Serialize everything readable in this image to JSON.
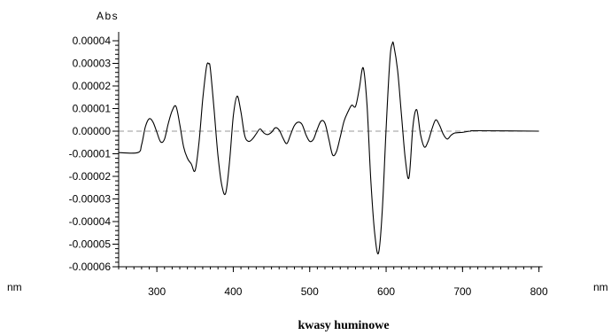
{
  "chart_data": {
    "type": "line",
    "title": "kwasy huminowe",
    "ylabel": "Abs",
    "xlabel_left": "nm",
    "xlabel_right": "nm",
    "xlim": [
      250,
      800
    ],
    "ylim": [
      -6e-05,
      4e-05
    ],
    "x_ticks": [
      300,
      400,
      500,
      600,
      700,
      800
    ],
    "x_tick_labels": [
      "300",
      "400",
      "500",
      "600",
      "700",
      "800"
    ],
    "y_ticks": [
      4e-05,
      3e-05,
      2e-05,
      1e-05,
      0.0,
      -1e-05,
      -2e-05,
      -3e-05,
      -4e-05,
      -5e-05,
      -6e-05
    ],
    "y_tick_labels": [
      "0.00004",
      "0.00003",
      "0.00002",
      "0.00001",
      "0.00000",
      "-0.00001",
      "-0.00002",
      "-0.00003",
      "-0.00004",
      "-0.00005",
      "-0.00006"
    ],
    "zero_line": "dashed",
    "grid": false,
    "legend": "none",
    "series": [
      {
        "color": "#000000",
        "x": [
          200,
          275,
          280,
          285,
          290,
          295,
          300,
          305,
          310,
          315,
          320,
          325,
          330,
          335,
          340,
          345,
          350,
          355,
          360,
          365,
          368,
          370,
          375,
          380,
          385,
          390,
          395,
          400,
          405,
          410,
          415,
          420,
          425,
          430,
          435,
          440,
          445,
          450,
          455,
          460,
          465,
          470,
          475,
          480,
          485,
          490,
          495,
          500,
          505,
          510,
          515,
          520,
          525,
          530,
          535,
          540,
          545,
          550,
          555,
          560,
          565,
          570,
          575,
          580,
          585,
          590,
          595,
          600,
          605,
          608,
          610,
          615,
          620,
          625,
          630,
          635,
          640,
          645,
          650,
          655,
          660,
          665,
          670,
          675,
          680,
          685,
          690,
          700,
          710,
          720,
          800
        ],
        "y": [
          -9.5e-06,
          -9.5e-06,
          -6e-06,
          2e-06,
          5.5e-06,
          4e-06,
          -5e-07,
          -4.8e-06,
          -3.5e-06,
          3.5e-06,
          9e-06,
          1.1e-05,
          3e-06,
          -7e-06,
          -1.2e-05,
          -1.45e-05,
          -1.75e-05,
          -5.5e-06,
          1.4e-05,
          2.85e-05,
          2.98e-05,
          2.75e-05,
          9e-06,
          -1.1e-05,
          -2.4e-05,
          -2.75e-05,
          -1.4e-05,
          6.5e-06,
          1.55e-05,
          8.5e-06,
          -2e-06,
          -4.5e-06,
          -3.5e-06,
          -1.2e-06,
          1e-06,
          -8e-07,
          -1.5e-06,
          -5e-07,
          1.5e-06,
          5e-07,
          -3e-06,
          -5.5e-06,
          -1.5e-06,
          2.5e-06,
          4e-06,
          3e-06,
          -1.5e-06,
          -4.5e-06,
          -3.5e-06,
          1e-06,
          4.5e-06,
          3.5e-06,
          -3.5e-06,
          -1.05e-05,
          -9e-06,
          -2.5e-06,
          4.5e-06,
          8.5e-06,
          1.15e-05,
          1.1e-05,
          1.9e-05,
          2.8e-05,
          1.15e-05,
          -2.2e-05,
          -4.5e-05,
          -5.4e-05,
          -3.5e-05,
          1.5e-06,
          3.2e-05,
          3.87e-05,
          3.8e-05,
          2.7e-05,
          7.5e-06,
          -1.2e-05,
          -2.05e-05,
          2e-06,
          9.5e-06,
          -1.5e-06,
          -7e-06,
          -4.5e-06,
          1e-06,
          5e-06,
          2.5e-06,
          -1.5e-06,
          -3.5e-06,
          -1.8e-06,
          -8e-07,
          -5e-07,
          0.0,
          2e-07,
          0.0
        ]
      }
    ]
  }
}
